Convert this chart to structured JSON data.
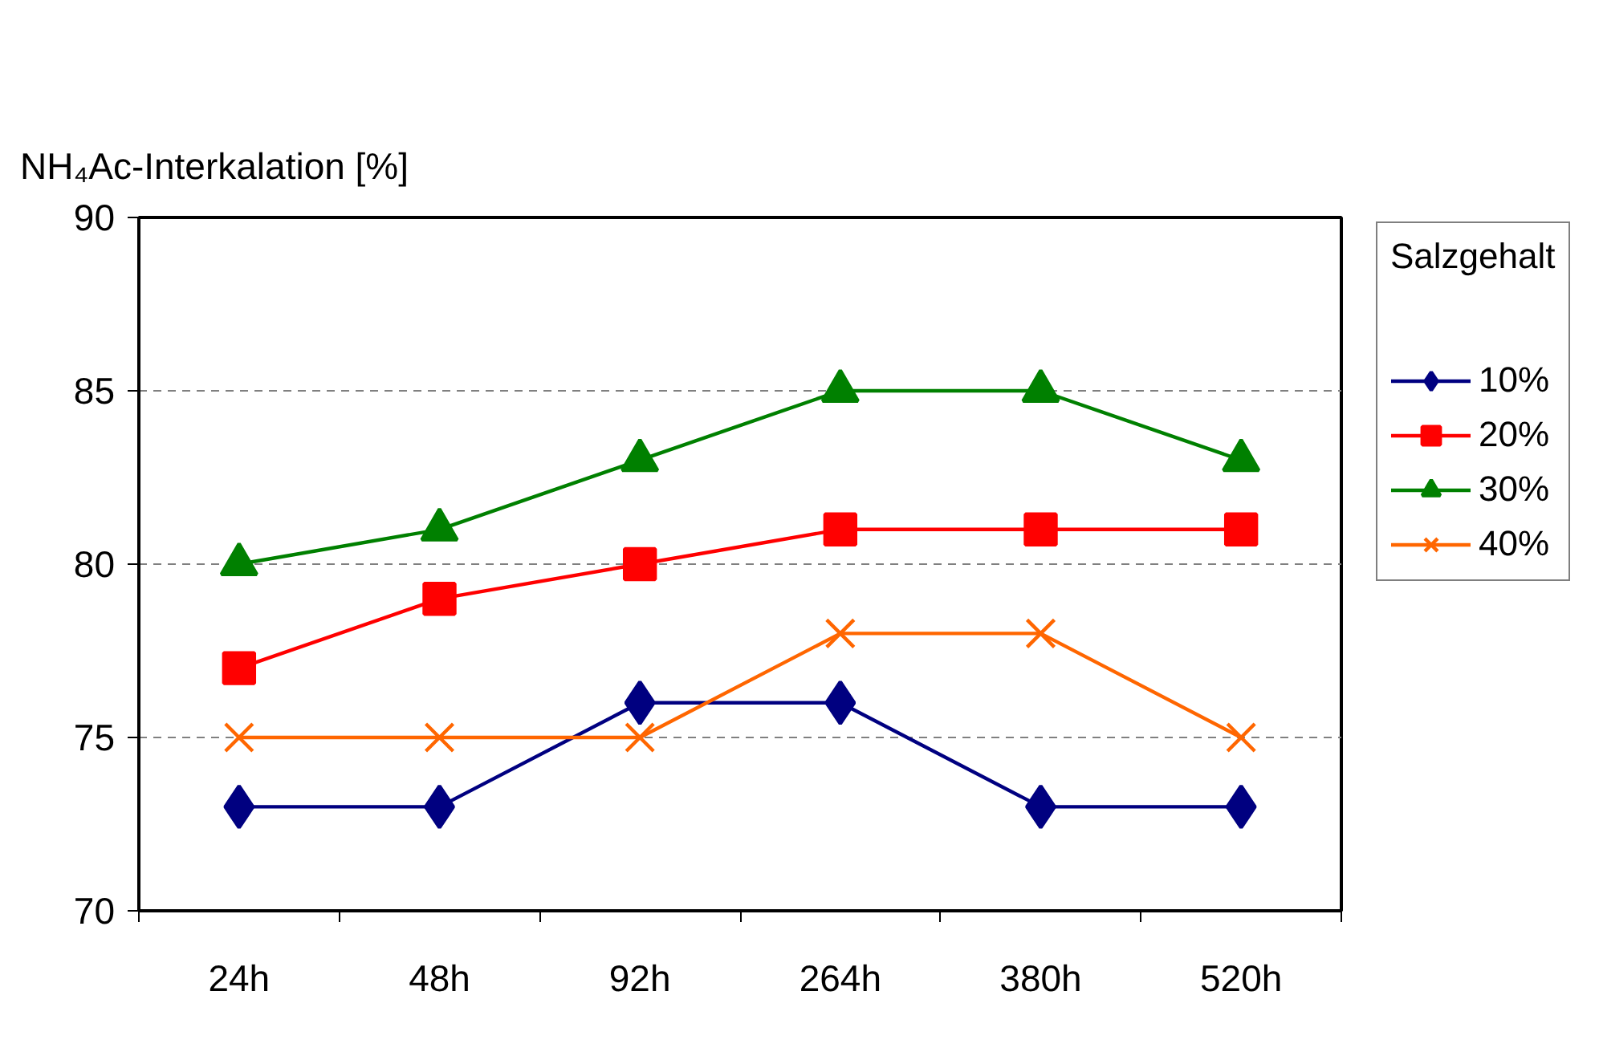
{
  "chart_data": {
    "type": "line",
    "ylabel": "NH₄Ac-Interkalation [%]",
    "legend_title": "Salzgehalt",
    "categories": [
      "24h",
      "48h",
      "92h",
      "264h",
      "380h",
      "520h"
    ],
    "series": [
      {
        "name": "10%",
        "color": "#000080",
        "marker": "diamond",
        "values": [
          73,
          73,
          76,
          76,
          73,
          73
        ]
      },
      {
        "name": "20%",
        "color": "#ff0000",
        "marker": "square",
        "values": [
          77,
          79,
          80,
          81,
          81,
          81
        ]
      },
      {
        "name": "30%",
        "color": "#008000",
        "marker": "triangle",
        "values": [
          80,
          81,
          83,
          85,
          85,
          83
        ]
      },
      {
        "name": "40%",
        "color": "#ff6600",
        "marker": "cross",
        "values": [
          75,
          75,
          75,
          78,
          78,
          75
        ]
      }
    ],
    "ylim": [
      70,
      90
    ],
    "yticks": [
      70,
      75,
      80,
      85,
      90
    ],
    "grid": "y",
    "legend": "right",
    "line_style": "solid"
  }
}
